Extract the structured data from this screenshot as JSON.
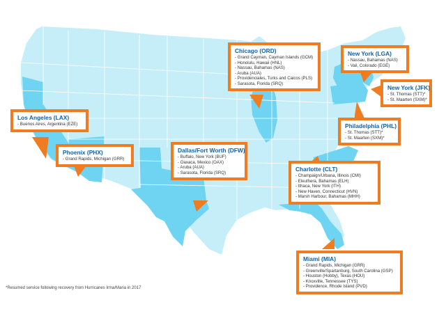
{
  "colors": {
    "land": "#c6eef9",
    "highlight": "#6fd3f2",
    "border": "#ffffff",
    "callout_border": "#f07c22",
    "title": "#1062a8"
  },
  "callouts": [
    {
      "id": "lax",
      "title": "Los Angeles (LAX)",
      "items": [
        "Buenos Aires, Argentina (EZE)"
      ]
    },
    {
      "id": "phx",
      "title": "Phoenix (PHX)",
      "items": [
        "Grand Rapids, Michigan (GRR)"
      ]
    },
    {
      "id": "dfw",
      "title": "Dallas/Fort Worth (DFW)",
      "items": [
        "Buffalo, New York (BUF)",
        "Oaxaca, Mexico (OAX)",
        "Aruba (AUA)",
        "Sarasota, Florida (SRQ)"
      ]
    },
    {
      "id": "ord",
      "title": "Chicago (ORD)",
      "items": [
        "Grand Cayman, Cayman Islands (GCM)",
        "Honolulu, Hawaii (HNL)",
        "Nassau, Bahamas (NAS)",
        "Aruba (AUA)",
        "Providenciales, Turks and Caicos (PLS)",
        "Sarasota, Florida (SRQ)"
      ]
    },
    {
      "id": "lga",
      "title": "New York (LGA)",
      "items": [
        "Nassau, Bahamas (NAS)",
        "Vail, Colorado (EGE)"
      ]
    },
    {
      "id": "jfk",
      "title": "New York (JFK)",
      "items": [
        "St. Thomas (STT)*",
        "St. Maarten (SXM)*"
      ]
    },
    {
      "id": "phl",
      "title": "Philadelphia (PHL)",
      "items": [
        "St. Thomas (STT)*",
        "St. Maarten (SXM)*"
      ]
    },
    {
      "id": "clt",
      "title": "Charlotte (CLT)",
      "items": [
        "Champaign/Urbana, Illinois (CMI)",
        "Eleuthera, Bahamas (ELH)",
        "Ithaca, New York (ITH)",
        "New Haven, Connecticut (HVN)",
        "Marsh Harbour, Bahamas (MHH)"
      ]
    },
    {
      "id": "mia",
      "title": "Miami (MIA)",
      "items": [
        "Grand Rapids, Michigan (GRR)",
        "Greenville/Spartanburg, South Carolina (GSP)",
        "Houston (Hobby), Texas (HOU)",
        "Knoxville, Tennessee (TYS)",
        "Providence, Rhode Island (PVD)"
      ]
    }
  ],
  "footnote": "*Resumed service following recovery from Hurricanes Irma/Maria in 2017"
}
